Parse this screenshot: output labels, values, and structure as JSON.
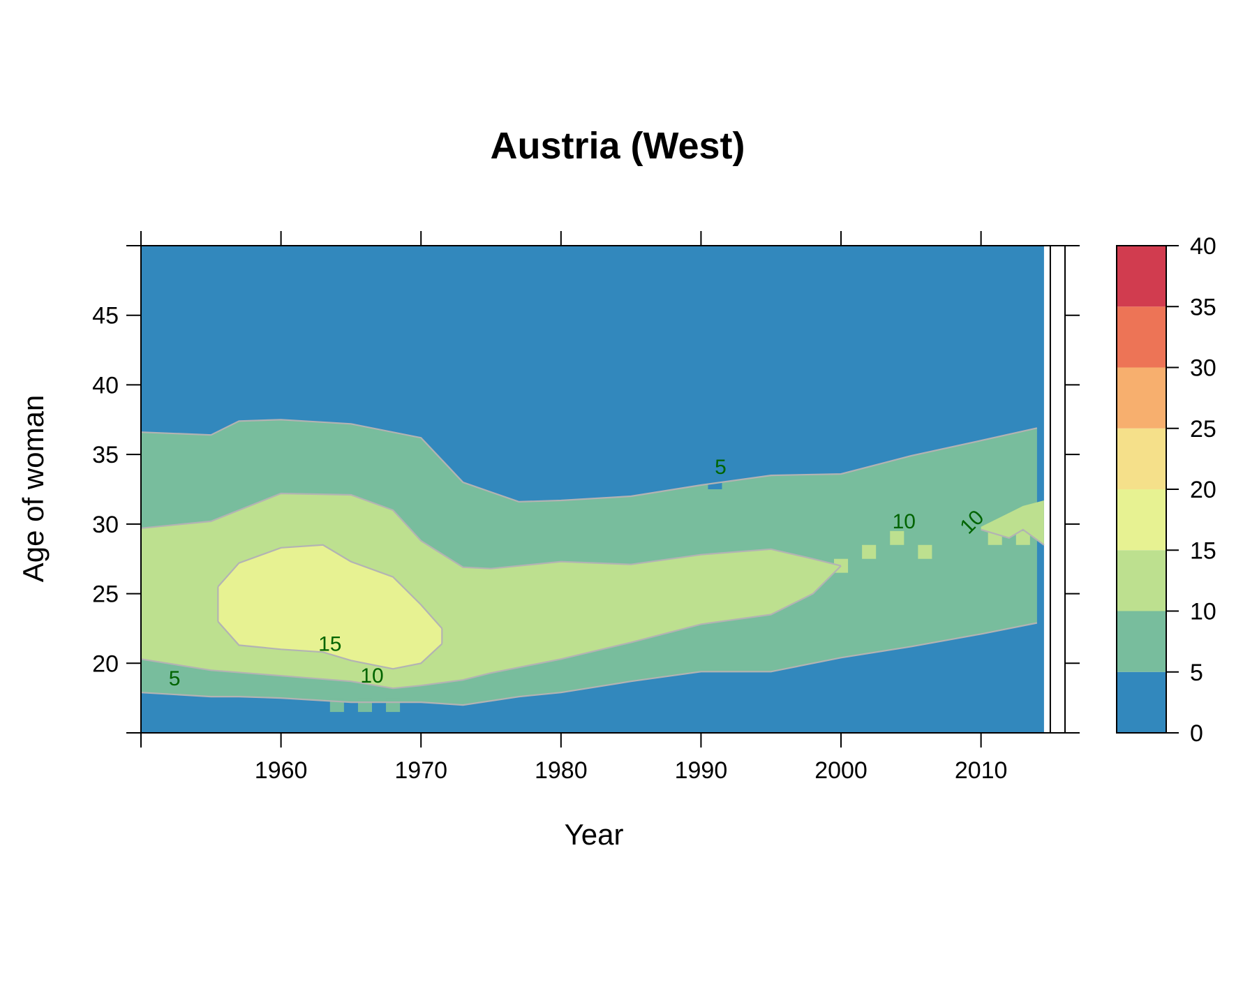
{
  "chart_data": {
    "type": "heatmap",
    "title": "Austria (West)",
    "xlabel": "Year",
    "ylabel": "Age of woman",
    "xlim": [
      1950,
      2016
    ],
    "ylim": [
      15,
      50
    ],
    "x_ticks": [
      1950,
      1960,
      1970,
      1980,
      1990,
      2000,
      2010
    ],
    "x_tick_labels": [
      "1960",
      "1970",
      "1980",
      "1990",
      "2000",
      "2010"
    ],
    "y_ticks": [
      15,
      20,
      25,
      30,
      35,
      40,
      45,
      50
    ],
    "y_tick_labels": [
      "20",
      "25",
      "30",
      "35",
      "40",
      "45"
    ],
    "color_scale": {
      "breaks": [
        0,
        5,
        10,
        15,
        20,
        25,
        30,
        35,
        40
      ],
      "labels": [
        "0",
        "5",
        "10",
        "15",
        "20",
        "25",
        "30",
        "35",
        "40"
      ],
      "colors": [
        "#3288BD",
        "#78BD9D",
        "#BDE08F",
        "#E7F292",
        "#F5E08A",
        "#F7AF6E",
        "#ED7456",
        "#D13C4F"
      ]
    },
    "data_end_year": 2014.5,
    "contour_levels": [
      5,
      10,
      15
    ],
    "bands": [
      {
        "level": 5,
        "year": [
          1950,
          1955,
          1957,
          1960,
          1965,
          1970,
          1973,
          1975,
          1977,
          1980,
          1985,
          1990,
          1995,
          2000,
          2005,
          2010,
          2014
        ],
        "lower": [
          17.9,
          17.6,
          17.6,
          17.5,
          17.2,
          17.2,
          17.0,
          17.3,
          17.6,
          17.9,
          18.7,
          19.4,
          19.4,
          20.4,
          21.2,
          22.1,
          22.9
        ],
        "upper": [
          36.6,
          36.4,
          37.4,
          37.5,
          37.2,
          36.2,
          33.0,
          32.3,
          31.6,
          31.7,
          32.0,
          32.8,
          33.5,
          33.6,
          34.9,
          36.0,
          36.9
        ]
      },
      {
        "level": 10,
        "year": [
          1950,
          1955,
          1960,
          1965,
          1968,
          1970,
          1973,
          1975,
          1980,
          1985,
          1990,
          1995,
          1998,
          2000
        ],
        "lower": [
          20.3,
          19.5,
          19.1,
          18.7,
          18.2,
          18.4,
          18.8,
          19.3,
          20.3,
          21.5,
          22.8,
          23.5,
          25.0,
          27.0
        ],
        "upper": [
          29.7,
          30.2,
          32.2,
          32.1,
          31.0,
          28.8,
          26.9,
          26.8,
          27.3,
          27.1,
          27.8,
          28.2,
          27.5,
          27.0
        ]
      },
      {
        "level": 15,
        "year": [
          1955.5,
          1957,
          1960,
          1963,
          1965,
          1968,
          1970,
          1971.5
        ],
        "lower": [
          23.0,
          21.3,
          21.0,
          20.8,
          20.2,
          19.6,
          20.0,
          21.4
        ],
        "upper": [
          25.5,
          27.2,
          28.3,
          28.5,
          27.3,
          26.2,
          24.2,
          22.5
        ]
      }
    ],
    "late_band": {
      "level": 10,
      "year": [
        2010,
        2012,
        2013,
        2014.5
      ],
      "lower": [
        29.6,
        29.0,
        29.6,
        28.5
      ],
      "upper": [
        29.8,
        30.8,
        31.3,
        31.7
      ]
    },
    "isolated_cells": [
      {
        "year": 2000,
        "age": 27,
        "level": 10
      },
      {
        "year": 2002,
        "age": 28,
        "level": 10
      },
      {
        "year": 2004,
        "age": 29,
        "level": 10
      },
      {
        "year": 2006,
        "age": 28,
        "level": 10
      },
      {
        "year": 2011,
        "age": 29,
        "level": 10
      },
      {
        "year": 2013,
        "age": 29,
        "level": 10
      },
      {
        "year": 1964,
        "age": 17,
        "level": 5
      },
      {
        "year": 1966,
        "age": 17,
        "level": 5
      },
      {
        "year": 1968,
        "age": 17,
        "level": 5
      },
      {
        "year": 1991,
        "age": 33,
        "level": 0
      }
    ],
    "contour_labels": [
      {
        "text": "5",
        "year": 1952.4,
        "age": 18.4
      },
      {
        "text": "15",
        "year": 1963.5,
        "age": 20.9
      },
      {
        "text": "10",
        "year": 1966.5,
        "age": 18.6
      },
      {
        "text": "5",
        "year": 1991.4,
        "age": 33.6
      },
      {
        "text": "10",
        "year": 2004.5,
        "age": 29.7
      },
      {
        "text": "10",
        "year": 2009.7,
        "age": 29.8,
        "rotate": -45
      }
    ]
  }
}
